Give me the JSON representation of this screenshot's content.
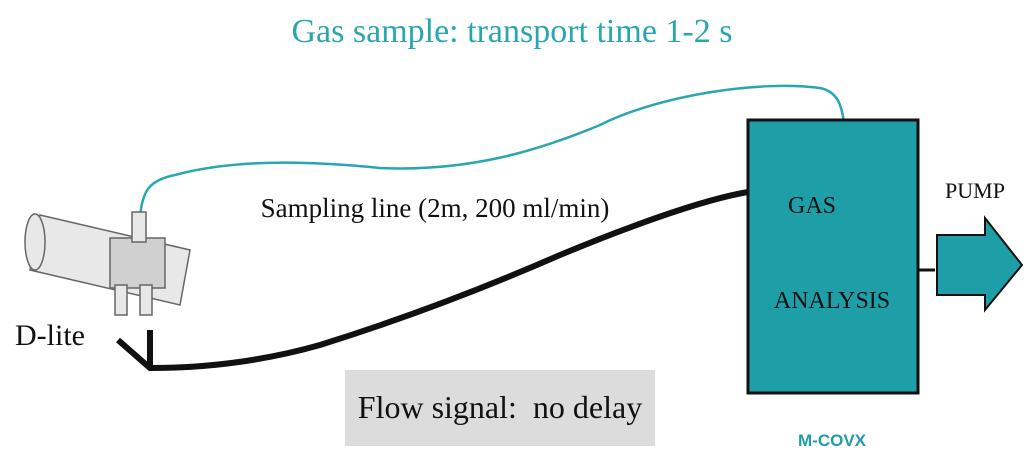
{
  "title": "Gas sample: transport time 1-2 s",
  "sampling_line_label": "Sampling line (2m, 200 ml/min)",
  "sensor_label": "D-lite",
  "flow_signal_label": "Flow signal:  no delay",
  "analyzer": {
    "line1": "GAS",
    "line2": "ANALYSIS",
    "model": "M-COVX"
  },
  "pump_label": "PUMP"
}
